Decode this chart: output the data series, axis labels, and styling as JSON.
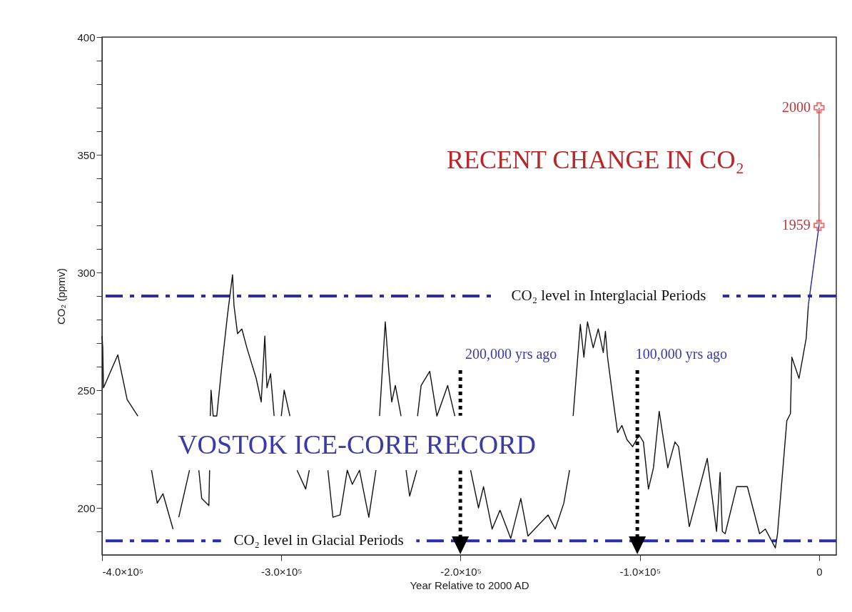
{
  "chart_data": {
    "type": "line",
    "xlabel": "Year Relative to 2000 AD",
    "ylabel": "CO₂ (ppmv)",
    "xlim": [
      -400000,
      9600
    ],
    "ylim": [
      180,
      400
    ],
    "xticks": [
      {
        "value": -400000,
        "label": "-4.0×10⁵"
      },
      {
        "value": -300000,
        "label": "-3.0×10⁵"
      },
      {
        "value": -200000,
        "label": "-2.0×10⁵"
      },
      {
        "value": -100000,
        "label": "-1.0×10⁵"
      },
      0
    ],
    "yticks": [
      {
        "value": 190,
        "label": null
      },
      200,
      {
        "value": 210,
        "label": null
      },
      {
        "value": 220,
        "label": null
      },
      {
        "value": 230,
        "label": null
      },
      {
        "value": 240,
        "label": null
      },
      250,
      {
        "value": 260,
        "label": null
      },
      {
        "value": 270,
        "label": null
      },
      {
        "value": 280,
        "label": null
      },
      {
        "value": 290,
        "label": null
      },
      300,
      {
        "value": 310,
        "label": null
      },
      {
        "value": 320,
        "label": null
      },
      {
        "value": 330,
        "label": null
      },
      {
        "value": 340,
        "label": null
      },
      350,
      {
        "value": 360,
        "label": null
      },
      {
        "value": 370,
        "label": null
      },
      {
        "value": 380,
        "label": null
      },
      {
        "value": 390,
        "label": null
      },
      400
    ],
    "grid": false,
    "marker": "none",
    "line_style": "solid",
    "series": [
      {
        "color": "#111111",
        "x": [
          -400000,
          -399600,
          -399200,
          -391200,
          -386000,
          -380000,
          -378000,
          -372400,
          -369200,
          -366000,
          -360400,
          -358800,
          -357200,
          -351200,
          -348000,
          -346000,
          -344400,
          -340400,
          -340000,
          -339800,
          -339600,
          -339200,
          -338000,
          -336000,
          -333200,
          -330000,
          -327200,
          -326400,
          -324400,
          -322000,
          -319200,
          -314000,
          -311200,
          -309200,
          -308000,
          -306000,
          -304000,
          -302000,
          -300000,
          -298400,
          -295200,
          -293000,
          -291200,
          -286400,
          -284400,
          -280000,
          -274000,
          -271200,
          -267200,
          -263200,
          -260400,
          -256400,
          -251200,
          -247200,
          -246000,
          -245200,
          -243200,
          -242000,
          -240000,
          -238400,
          -236400,
          -233200,
          -232000,
          -230400,
          -228400,
          -224400,
          -224200,
          -224000,
          -222000,
          -217200,
          -213200,
          -210400,
          -207200,
          -203200,
          -200000,
          -194400,
          -190000,
          -187200,
          -182400,
          -178000,
          -172000,
          -166400,
          -162400,
          -151200,
          -147200,
          -142400,
          -139200,
          -138000,
          -137200,
          -133200,
          -131200,
          -129200,
          -126000,
          -123200,
          -120400,
          -119200,
          -118000,
          -114400,
          -112400,
          -110000,
          -107200,
          -104000,
          -100400,
          -98000,
          -95200,
          -92400,
          -89200,
          -84400,
          -80400,
          -78400,
          -72400,
          -62400,
          -60400,
          -57200,
          -55200,
          -54000,
          -52400,
          -46000,
          -40000,
          -33200,
          -30000,
          -24400,
          -23200,
          -18000,
          -16000,
          -15200,
          -11200,
          -7200,
          -6000
        ],
        "values": [
          273,
          268,
          251,
          265,
          246,
          239,
          null,
          216,
          202,
          206,
          191,
          null,
          196,
          216,
          null,
          216,
          204,
          201,
          216,
          null,
          239,
          250,
          239,
          239,
          260,
          282,
          299,
          286,
          274,
          276,
          268,
          255,
          245,
          273,
          251,
          257,
          239,
          null,
          239,
          250,
          239,
          null,
          216,
          208,
          216,
          null,
          216,
          196,
          197,
          216,
          210,
          216,
          196,
          216,
          null,
          239,
          264,
          279,
          258,
          245,
          252,
          239,
          null,
          216,
          205,
          216,
          null,
          239,
          252,
          258,
          239,
          245,
          252,
          239,
          null,
          216,
          200,
          209,
          191,
          199,
          187,
          204,
          188,
          197,
          191,
          202,
          216,
          null,
          239,
          278,
          264,
          279,
          268,
          276,
          266,
          275,
          264,
          243,
          232,
          235,
          229,
          226,
          231,
          228,
          208,
          217,
          241,
          217,
          228,
          226,
          192,
          221,
          209,
          190,
          215,
          190,
          189,
          209,
          209,
          189,
          191,
          183,
          189,
          237,
          240,
          264,
          255,
          272,
          286
        ]
      },
      {
        "color": "#2323a8",
        "x": [
          -6000,
          -41
        ],
        "values": [
          286,
          320
        ]
      },
      {
        "color": "#e03a3a",
        "x": [
          -41,
          0
        ],
        "values": [
          320,
          370
        ],
        "marker": "cross"
      }
    ],
    "ref_lines": [
      {
        "axis": "y",
        "value": 290,
        "label": "CO₂ level in Interglacial Periods",
        "color": "#2b2bb0",
        "line_style": "dashed"
      },
      {
        "axis": "y",
        "value": 186,
        "label": "CO₂ level in Glacial Periods",
        "color": "#2b2bb0",
        "line_style": "dashed"
      }
    ],
    "annotations": [
      "RECENT CHANGE IN CO₂",
      "VOSTOK ICE-CORE RECORD",
      {
        "text": "2000",
        "x": 0,
        "y": 370
      },
      {
        "text": "1959",
        "x": -41,
        "y": 320
      },
      "200,000 yrs ago",
      "100,000 yrs ago"
    ]
  }
}
